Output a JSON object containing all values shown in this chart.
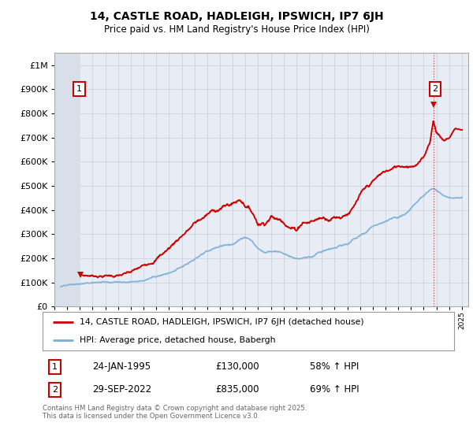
{
  "title": "14, CASTLE ROAD, HADLEIGH, IPSWICH, IP7 6JH",
  "subtitle": "Price paid vs. HM Land Registry's House Price Index (HPI)",
  "legend_line1": "14, CASTLE ROAD, HADLEIGH, IPSWICH, IP7 6JH (detached house)",
  "legend_line2": "HPI: Average price, detached house, Babergh",
  "annotation1_date": "24-JAN-1995",
  "annotation1_price": "£130,000",
  "annotation1_hpi": "58% ↑ HPI",
  "annotation2_date": "29-SEP-2022",
  "annotation2_price": "£835,000",
  "annotation2_hpi": "69% ↑ HPI",
  "footer": "Contains HM Land Registry data © Crown copyright and database right 2025.\nThis data is licensed under the Open Government Licence v3.0.",
  "red_color": "#cc0000",
  "blue_color": "#7aadd4",
  "ylim": [
    0,
    1050000
  ],
  "xlim_start": 1993.0,
  "xlim_end": 2025.5,
  "ann1_x": 1995.07,
  "ann1_y": 130000,
  "ann2_x": 2022.75,
  "ann2_y": 835000
}
